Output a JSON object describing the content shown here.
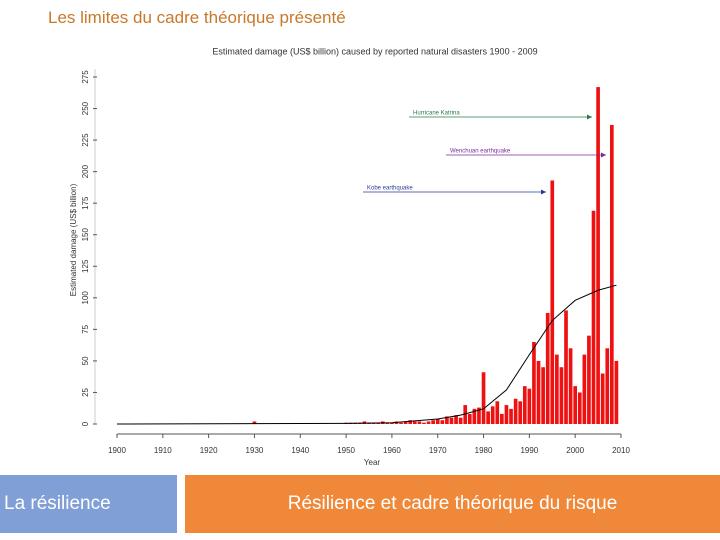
{
  "slide": {
    "title": "Les limites du cadre théorique présenté",
    "footer_left": "La résilience",
    "footer_right": "Résilience et cadre théorique du risque"
  },
  "chart_data": {
    "type": "bar",
    "title": "Estimated damage (US$ billion) caused by reported natural disasters 1900 - 2009",
    "x_label": "Year",
    "y_label": "Estimated damage (US$ billion)",
    "color": "#ee1111",
    "x": [
      1930,
      1950,
      1951,
      1952,
      1953,
      1954,
      1955,
      1956,
      1957,
      1958,
      1959,
      1960,
      1961,
      1962,
      1963,
      1964,
      1965,
      1966,
      1967,
      1968,
      1969,
      1970,
      1971,
      1972,
      1973,
      1974,
      1975,
      1976,
      1977,
      1978,
      1979,
      1980,
      1981,
      1982,
      1983,
      1984,
      1985,
      1986,
      1987,
      1988,
      1989,
      1990,
      1991,
      1992,
      1993,
      1994,
      1995,
      1996,
      1997,
      1998,
      1999,
      2000,
      2001,
      2002,
      2003,
      2004,
      2005,
      2006,
      2007,
      2008,
      2009
    ],
    "values": [
      2,
      1,
      1,
      1,
      1,
      2,
      1,
      1,
      1,
      2,
      1,
      1,
      2,
      1,
      2,
      3,
      2,
      2,
      1,
      2,
      3,
      4,
      3,
      6,
      5,
      7,
      5,
      15,
      8,
      12,
      13,
      41,
      10,
      14,
      18,
      8,
      15,
      12,
      20,
      18,
      30,
      28,
      65,
      50,
      45,
      88,
      193,
      55,
      45,
      90,
      60,
      30,
      25,
      55,
      70,
      169,
      267,
      40,
      60,
      237,
      50
    ],
    "trend": {
      "color": "#000000",
      "x": [
        1900,
        1950,
        1960,
        1970,
        1975,
        1980,
        1985,
        1990,
        1995,
        2000,
        2005,
        2009
      ],
      "values": [
        0,
        0.5,
        1,
        4,
        7,
        12,
        27,
        55,
        82,
        98,
        106,
        110
      ]
    },
    "annotations": [
      {
        "text": "Hurricane Katrina"
      },
      {
        "text": "Wenchuan earthquake"
      },
      {
        "text": "Kobe earthquake"
      }
    ],
    "xlim": [
      1900,
      2010
    ],
    "xticks": [
      1900,
      1910,
      1920,
      1930,
      1940,
      1950,
      1960,
      1970,
      1980,
      1990,
      2000,
      2010
    ],
    "ylim": [
      0,
      275
    ],
    "yticks": [
      0,
      25,
      50,
      75,
      100,
      125,
      150,
      175,
      200,
      225,
      250,
      275
    ],
    "grid": false
  }
}
